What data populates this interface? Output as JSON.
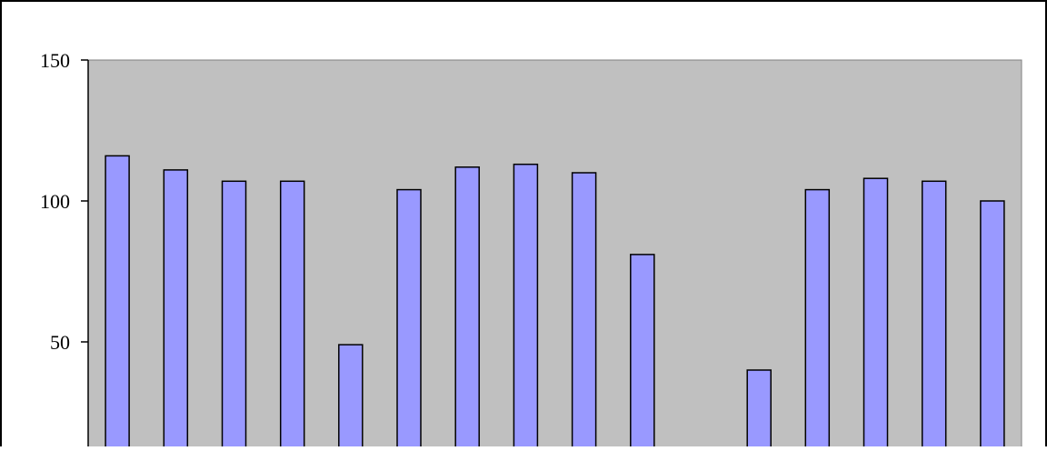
{
  "chart_data": {
    "type": "bar",
    "title": "",
    "xlabel": "",
    "ylabel": "",
    "ylim": [
      0,
      150
    ],
    "yticks": [
      150,
      100,
      50
    ],
    "grid": false,
    "legend": "none",
    "categories": [
      "",
      "",
      "",
      "",
      "",
      "",
      "",
      "",
      "",
      "",
      "",
      "",
      "",
      "",
      "",
      ""
    ],
    "series": [
      {
        "values": [
          116,
          111,
          107,
          107,
          49,
          104,
          112,
          113,
          110,
          81,
          null,
          40,
          104,
          108,
          107,
          100
        ]
      }
    ]
  },
  "colors": {
    "plot_background": "#c0c0c0",
    "bar_fill": "#9999ff",
    "bar_stroke": "#000000",
    "axis": "#000000",
    "page_border": "#000000"
  }
}
